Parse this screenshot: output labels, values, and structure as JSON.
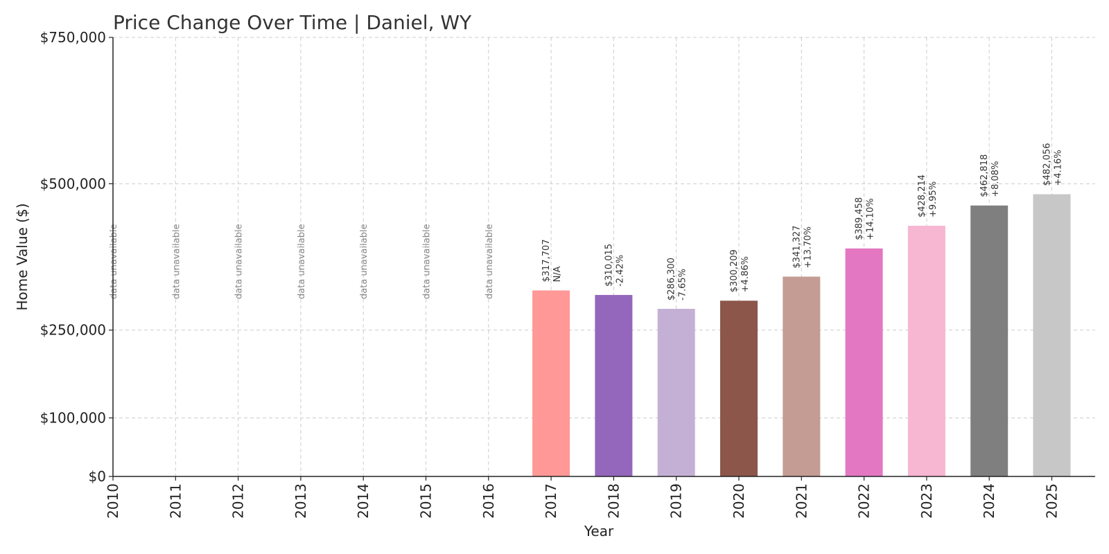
{
  "chart_data": {
    "type": "bar",
    "title": "Price Change Over Time | Daniel, WY",
    "xlabel": "Year",
    "ylabel": "Home Value ($)",
    "ylim": [
      0,
      750000
    ],
    "yticks": [
      0,
      100000,
      250000,
      500000,
      750000
    ],
    "ytick_labels": [
      "$0",
      "$100,000",
      "$250,000",
      "$500,000",
      "$750,000"
    ],
    "grid": true,
    "categories": [
      "2010",
      "2011",
      "2012",
      "2013",
      "2014",
      "2015",
      "2016",
      "2017",
      "2018",
      "2019",
      "2020",
      "2021",
      "2022",
      "2023",
      "2024",
      "2025"
    ],
    "values": [
      null,
      null,
      null,
      null,
      null,
      null,
      null,
      317707,
      310015,
      286300,
      300209,
      341327,
      389458,
      428214,
      462818,
      482056
    ],
    "value_labels": [
      "",
      "",
      "",
      "",
      "",
      "",
      "",
      "$317,707",
      "$310,015",
      "$286,300",
      "$300,209",
      "$341,327",
      "$389,458",
      "$428,214",
      "$462,818",
      "$482,056"
    ],
    "change_labels": [
      "",
      "",
      "",
      "",
      "",
      "",
      "",
      "N/A",
      "-2.42%",
      "-7.65%",
      "+4.86%",
      "+13.70%",
      "+14.10%",
      "+9.95%",
      "+8.08%",
      "+4.16%"
    ],
    "unavailable_label": "data unavailable",
    "colors": [
      "#ff9896",
      "#ff9896",
      "#ff9896",
      "#ff9896",
      "#ff9896",
      "#ff9896",
      "#ff9896",
      "#ff9896",
      "#9467bd",
      "#c5b0d5",
      "#8c564b",
      "#c49c94",
      "#e377c2",
      "#f7b6d2",
      "#7f7f7f",
      "#c7c7c7"
    ]
  }
}
